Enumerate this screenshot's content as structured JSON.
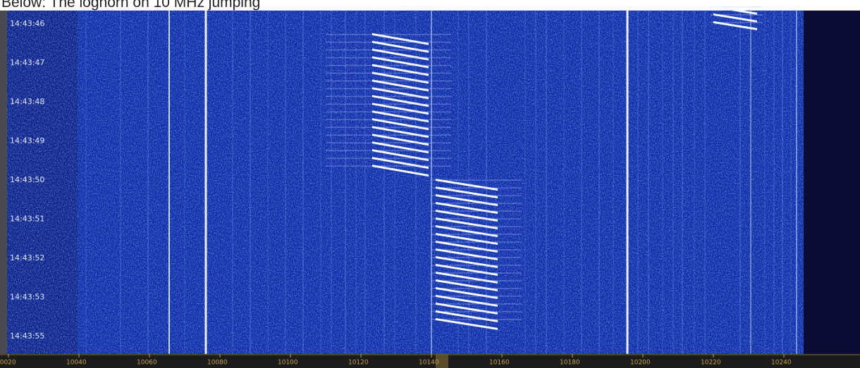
{
  "caption": "Below: The loghorn on 10 MHz jumping",
  "time_labels": [
    "14:43:46",
    "14:43:47",
    "14:43:48",
    "14:43:49",
    "14:43:50",
    "14:43:51",
    "14:43:52",
    "14:43:53",
    "14:43:55"
  ],
  "frequency_labels": [
    "10020",
    "10040",
    "10060",
    "10080",
    "10100",
    "10120",
    "10140",
    "10160",
    "10180",
    "10200",
    "10220",
    "10240"
  ]
}
